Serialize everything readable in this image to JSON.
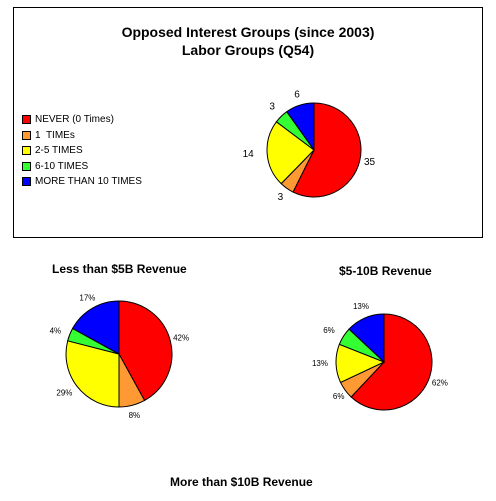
{
  "chart_data": [
    {
      "type": "pie",
      "title": "Opposed Interest Groups (since 2003)",
      "subtitle": "Labor Groups (Q54)",
      "legend": [
        {
          "label": "NEVER (0 Times)",
          "color": "#ff0000"
        },
        {
          "label": "1  TIMEs",
          "color": "#ff9933"
        },
        {
          "label": "2-5 TIMES",
          "color": "#ffff00"
        },
        {
          "label": "6-10 TIMES",
          "color": "#33ff33"
        },
        {
          "label": "MORE THAN 10 TIMES",
          "color": "#0000ff"
        }
      ],
      "legend_position": "left",
      "values": [
        35,
        3,
        14,
        3,
        6
      ],
      "labels": [
        "35",
        "3",
        "14",
        "3",
        "6"
      ]
    },
    {
      "type": "pie",
      "title": "Less than $5B Revenue",
      "values": [
        42,
        8,
        29,
        4,
        17
      ],
      "labels": [
        "42%",
        "8%",
        "29%",
        "4%",
        "17%"
      ]
    },
    {
      "type": "pie",
      "title": "$5-10B Revenue",
      "values": [
        62,
        6,
        13,
        6,
        13
      ],
      "labels": [
        "62%",
        "6%",
        "13%",
        "6%",
        "13%"
      ]
    },
    {
      "type": "pie",
      "title": "More than $10B Revenue",
      "values": [],
      "labels": []
    }
  ]
}
